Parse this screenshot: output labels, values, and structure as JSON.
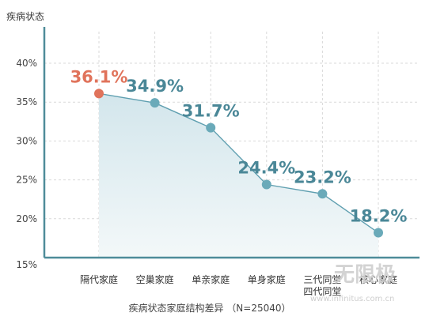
{
  "chart_data": {
    "type": "line",
    "ylabel": "疾病状态",
    "categories": [
      "隔代家庭",
      "空巢家庭",
      "单亲家庭",
      "单身家庭",
      "三代同堂\n四代同堂",
      "核心家庭"
    ],
    "values": [
      36.1,
      34.9,
      31.7,
      24.4,
      23.2,
      18.2
    ],
    "data_labels": [
      "36.1%",
      "34.9%",
      "31.7%",
      "24.4%",
      "23.2%",
      "18.2%"
    ],
    "ylim": [
      15,
      40
    ],
    "yticks": [
      15,
      20,
      25,
      30,
      35,
      40
    ],
    "ytick_labels": [
      "15%",
      "20%",
      "25%",
      "30%",
      "35%",
      "40%"
    ],
    "xlabel": "疾病状态家庭结构差异 （N=25040）",
    "grid": true,
    "area_fill": true,
    "highlight_index": 0
  },
  "colors": {
    "line": "#5f9fb0",
    "marker": "#6aaab9",
    "highlight": "#e0735b",
    "label": "#4a8797",
    "fill_top": "#d3e6ec",
    "fill_bottom": "#f3f8f9",
    "grid": "#d9d9d9",
    "axis": "#4e8c99"
  },
  "watermark": {
    "logo_text": "无限极",
    "url": "www.infinitus.com.cn"
  }
}
